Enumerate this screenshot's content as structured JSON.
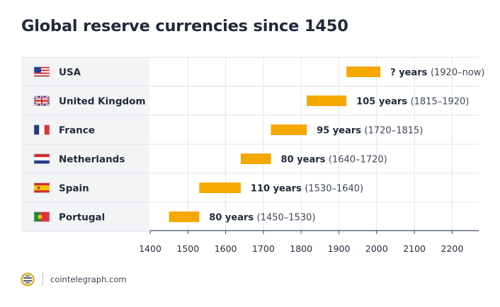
{
  "title": "Global reserve currencies since 1450",
  "footer": {
    "source": "cointelegraph.com",
    "logo_icon": "cointelegraph-logo-icon"
  },
  "colors": {
    "bar": "#f5a800",
    "row_bg": "#f3f4f6",
    "axis": "#3a4a63",
    "text": "#1f2a3b",
    "grid": "#e4e6ea"
  },
  "chart_data": {
    "type": "bar",
    "orientation": "horizontal-range",
    "title": "Global reserve currencies since 1450",
    "xlim": [
      1400,
      2270
    ],
    "xticks": [
      1400,
      1500,
      1600,
      1700,
      1800,
      1900,
      2000,
      2100,
      2200
    ],
    "grid": true,
    "rows": [
      {
        "name": "USA",
        "flag": "usa-flag-icon",
        "start": 1920,
        "end": 2010,
        "duration_label": "? years",
        "range_label": "(1920–now)"
      },
      {
        "name": "United Kingdom",
        "flag": "uk-flag-icon",
        "start": 1815,
        "end": 1920,
        "duration_label": "105 years",
        "range_label": "(1815–1920)"
      },
      {
        "name": "France",
        "flag": "france-flag-icon",
        "start": 1720,
        "end": 1815,
        "duration_label": "95 years",
        "range_label": "(1720–1815)"
      },
      {
        "name": "Netherlands",
        "flag": "netherlands-flag-icon",
        "start": 1640,
        "end": 1720,
        "duration_label": "80 years",
        "range_label": "(1640–1720)"
      },
      {
        "name": "Spain",
        "flag": "spain-flag-icon",
        "start": 1530,
        "end": 1640,
        "duration_label": "110 years",
        "range_label": "(1530–1640)"
      },
      {
        "name": "Portugal",
        "flag": "portugal-flag-icon",
        "start": 1450,
        "end": 1530,
        "duration_label": "80 years",
        "range_label": "(1450–1530)"
      }
    ]
  }
}
